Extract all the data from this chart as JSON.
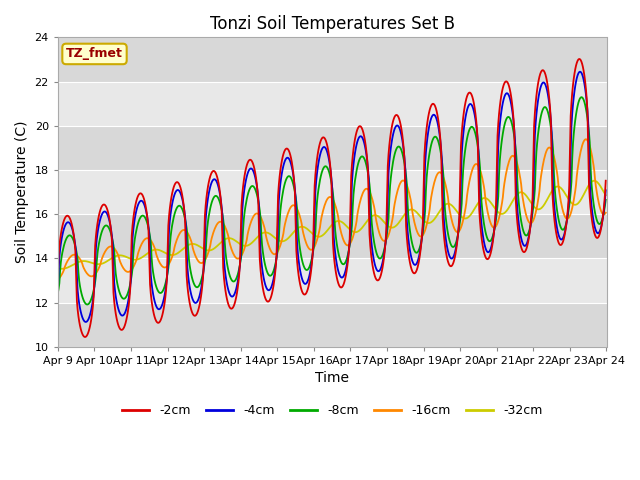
{
  "title": "Tonzi Soil Temperatures Set B",
  "xlabel": "Time",
  "ylabel": "Soil Temperature (C)",
  "ylim": [
    10,
    24
  ],
  "yticks": [
    10,
    12,
    14,
    16,
    18,
    20,
    22,
    24
  ],
  "annotation_text": "TZ_fmet",
  "annotation_bg": "#ffffcc",
  "annotation_border": "#ccaa00",
  "annotation_text_color": "#990000",
  "series_colors": {
    "-2cm": "#dd0000",
    "-4cm": "#0000dd",
    "-8cm": "#00aa00",
    "-16cm": "#ff8800",
    "-32cm": "#cccc00"
  },
  "legend_labels": [
    "-2cm",
    "-4cm",
    "-8cm",
    "-16cm",
    "-32cm"
  ],
  "bg_color": "#ffffff",
  "plot_bg_color": "#e8e8e8",
  "grid_stripe_color": "#d8d8d8",
  "grid_line_color": "#ffffff",
  "x_labels": [
    "Apr 9",
    "Apr 10",
    "Apr 11",
    "Apr 12",
    "Apr 13",
    "Apr 14",
    "Apr 15",
    "Apr 16",
    "Apr 17",
    "Apr 18",
    "Apr 19",
    "Apr 20",
    "Apr 21",
    "Apr 22",
    "Apr 23",
    "Apr 24"
  ]
}
